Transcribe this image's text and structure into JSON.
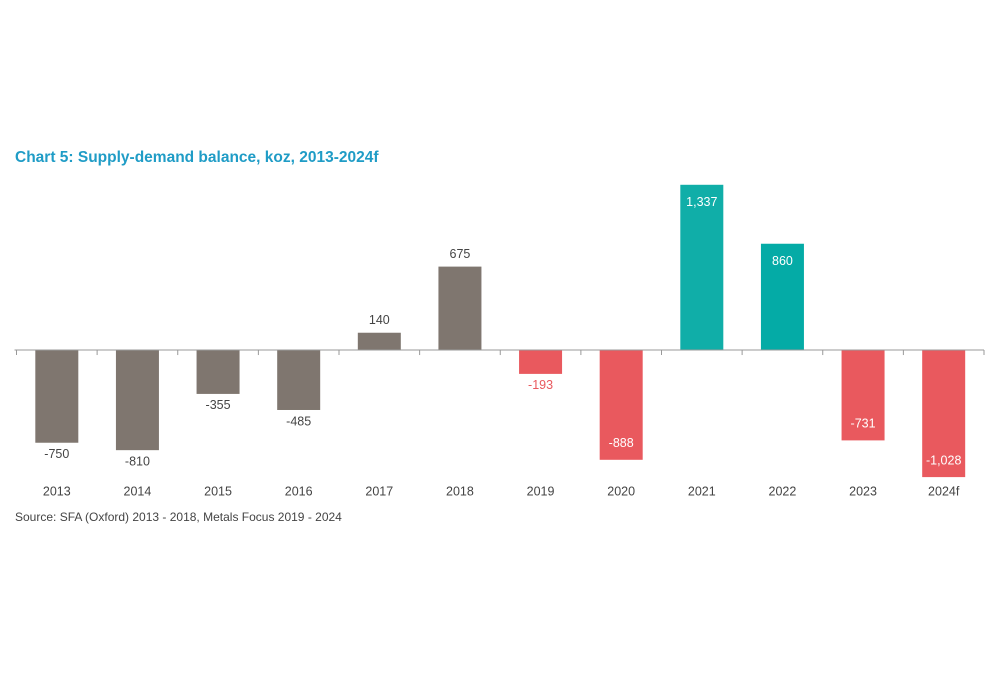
{
  "chart_data": {
    "type": "bar",
    "title": "Chart 5: Supply-demand balance, koz, 2013-2024f",
    "source": "Source: SFA (Oxford) 2013 - 2018, Metals Focus 2019 - 2024",
    "categories": [
      "2013",
      "2014",
      "2015",
      "2016",
      "2017",
      "2018",
      "2019",
      "2020",
      "2021",
      "2022",
      "2023",
      "2024f"
    ],
    "values": [
      -750,
      -810,
      -355,
      -485,
      140,
      675,
      -193,
      -888,
      1337,
      860,
      -731,
      -1028
    ],
    "value_labels": [
      "-750",
      "-810",
      "-355",
      "-485",
      "140",
      "675",
      "-193",
      "-888",
      "1,337",
      "860",
      "-731",
      "-1,028"
    ],
    "colors": [
      "#7f766f",
      "#7f766f",
      "#7f766f",
      "#7f766f",
      "#7f766f",
      "#7f766f",
      "#e9595e",
      "#e9595e",
      "#10aea8",
      "#04aba6",
      "#e9595e",
      "#e9595e"
    ],
    "label_colors": [
      "#444444",
      "#444444",
      "#444444",
      "#444444",
      "#444444",
      "#444444",
      "#e9595e",
      "#ffffff",
      "#ffffff",
      "#ffffff",
      "#ffffff",
      "#ffffff"
    ],
    "ylim": [
      -1100,
      1400
    ]
  }
}
